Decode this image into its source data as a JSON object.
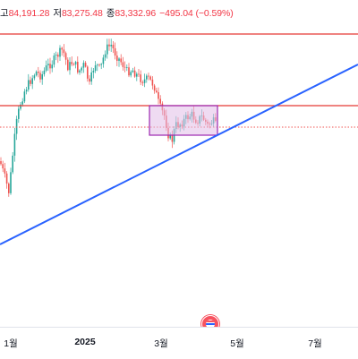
{
  "ohlc": {
    "high_label": "고",
    "high_value": "84,191.28",
    "low_label": "저",
    "low_value": "83,275.48",
    "close_label": "종",
    "close_value": "83,332.96",
    "change": "−495.04 (−0.59%)"
  },
  "colors": {
    "up": "#26a69a",
    "down": "#ef5350",
    "resistance": "#e53935",
    "trendline": "#2962ff",
    "box_fill": "#e1bee7",
    "box_border": "#9c27b0",
    "dotted": "#ef5350"
  },
  "chart_data": {
    "type": "candlestick",
    "x_ticks": [
      "1월",
      "2025",
      "3월",
      "5월",
      "7월"
    ],
    "x_tick_bold": [
      "2025"
    ],
    "overlays": [
      "horizontal-resistance-top",
      "horizontal-resistance-mid",
      "horizontal-dotted-price",
      "rectangle-range",
      "ascending-trendline"
    ],
    "event_marker": "economic-event-icon"
  }
}
